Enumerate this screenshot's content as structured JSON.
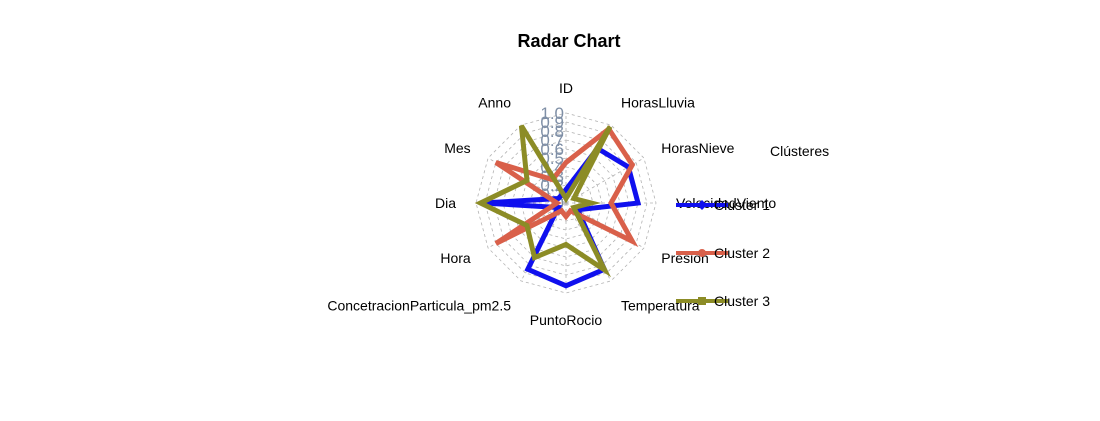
{
  "chart_data": {
    "type": "radar",
    "title": "Radar Chart",
    "axes": [
      "ID",
      "HorasLluvia",
      "HorasNieve",
      "VelocidadViento",
      "Presion",
      "Temperatura",
      "PuntoRocio",
      "ConcetracionParticula_pm2.5",
      "Hora",
      "Dia",
      "Mes",
      "Anno"
    ],
    "tick_labels": [
      "0",
      "0.1",
      "0.2",
      "0.3",
      "0.4",
      "0.5",
      "0.6",
      "0.7",
      "0.8",
      "0.9",
      "1.0"
    ],
    "range": [
      0,
      1
    ],
    "legend_title": "Clústeres",
    "series": [
      {
        "name": "Cluster 1",
        "color": "#1010ee",
        "marker": "diamond",
        "values": [
          0.15,
          0.7,
          0.8,
          0.8,
          0.15,
          0.85,
          0.92,
          0.85,
          0.1,
          0.92,
          0.1,
          0.1
        ]
      },
      {
        "name": "Cluster 2",
        "color": "#d9604a",
        "marker": "circle",
        "values": [
          0.45,
          0.95,
          0.85,
          0.5,
          0.85,
          0.1,
          0.15,
          0.1,
          0.9,
          0.1,
          0.9,
          0.3
        ]
      },
      {
        "name": "Cluster 3",
        "color": "#8c8c26",
        "marker": "square",
        "values": [
          0.05,
          0.98,
          0.1,
          0.28,
          0.1,
          0.86,
          0.46,
          0.7,
          0.5,
          0.95,
          0.5,
          0.99
        ]
      }
    ]
  }
}
